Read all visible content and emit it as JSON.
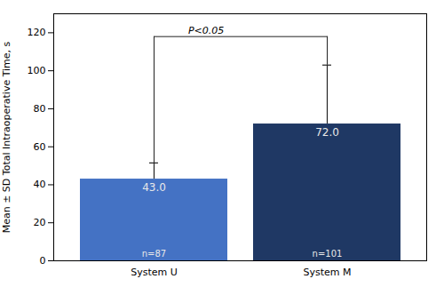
{
  "chart_data": {
    "type": "bar",
    "categories": [
      "System U",
      "System M"
    ],
    "values": [
      43.0,
      72.0
    ],
    "value_labels": [
      "43.0",
      "72.0"
    ],
    "data_labels": true,
    "colors": [
      "#4472C4",
      "#1F3864"
    ],
    "errors_upper": [
      8.5,
      31.0
    ],
    "n_labels": [
      "n=87",
      "n=101"
    ],
    "ylabel": "Mean ± SD Total Intraoperative Time, s",
    "ylim": [
      0,
      130
    ],
    "yticks": [
      0,
      20,
      40,
      60,
      80,
      100,
      120
    ],
    "significance": {
      "text": "P<0.05",
      "y": 118,
      "left_end": 51,
      "right_end": 103
    },
    "grid": false
  }
}
